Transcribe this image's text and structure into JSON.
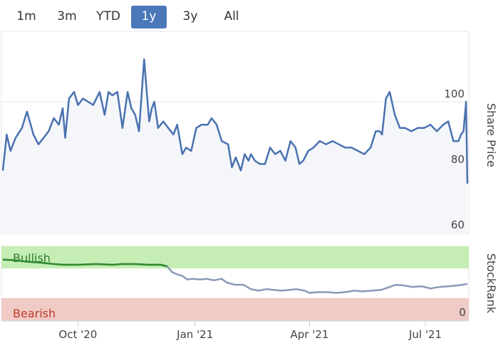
{
  "range_selector": {
    "buttons": [
      "1m",
      "3m",
      "YTD",
      "1y",
      "3y",
      "All"
    ],
    "selected": "1y"
  },
  "colors": {
    "price_line": "#4a72b0",
    "price_fill": "#f4f6fa",
    "bullish_band": "#c6eeb4",
    "bearish_band": "#f0cbc6",
    "bullish_line": "#2e8b2e",
    "stockrank_line": "#8a9ab5",
    "active_button": "#4a78b8"
  },
  "chart_data": [
    {
      "type": "line",
      "ylabel": "Share Price",
      "ylim": [
        57,
        115
      ],
      "y_ticks": [
        60,
        80,
        100
      ],
      "grid": true,
      "x_ticks": [
        {
          "label": "Oct '20",
          "date": "2020-10-01"
        },
        {
          "label": "Jan '21",
          "date": "2021-01-01"
        },
        {
          "label": "Apr '21",
          "date": "2021-04-01"
        },
        {
          "label": "Jul '21",
          "date": "2021-07-01"
        }
      ],
      "series": [
        {
          "x": [
            "2020-08-03",
            "2020-08-06",
            "2020-08-09",
            "2020-08-13",
            "2020-08-18",
            "2020-08-22",
            "2020-08-27",
            "2020-08-31",
            "2020-09-04",
            "2020-09-08",
            "2020-09-12",
            "2020-09-16",
            "2020-09-19",
            "2020-09-21",
            "2020-09-24",
            "2020-09-28",
            "2020-10-01",
            "2020-10-05",
            "2020-10-09",
            "2020-10-13",
            "2020-10-18",
            "2020-10-22",
            "2020-10-25",
            "2020-10-28",
            "2020-11-01",
            "2020-11-05",
            "2020-11-09",
            "2020-11-12",
            "2020-11-15",
            "2020-11-18",
            "2020-11-22",
            "2020-11-26",
            "2020-11-28",
            "2020-11-30",
            "2020-12-03",
            "2020-12-07",
            "2020-12-11",
            "2020-12-15",
            "2020-12-18",
            "2020-12-22",
            "2020-12-25",
            "2020-12-29",
            "2021-01-02",
            "2021-01-06",
            "2021-01-11",
            "2021-01-14",
            "2021-01-18",
            "2021-01-22",
            "2021-01-27",
            "2021-01-30",
            "2021-02-02",
            "2021-02-06",
            "2021-02-09",
            "2021-02-12",
            "2021-02-14",
            "2021-02-17",
            "2021-02-21",
            "2021-02-25",
            "2021-03-01",
            "2021-03-05",
            "2021-03-09",
            "2021-03-13",
            "2021-03-17",
            "2021-03-21",
            "2021-03-24",
            "2021-03-27",
            "2021-03-31",
            "2021-04-04",
            "2021-04-09",
            "2021-04-14",
            "2021-04-19",
            "2021-04-24",
            "2021-04-29",
            "2021-05-04",
            "2021-05-09",
            "2021-05-14",
            "2021-05-19",
            "2021-05-23",
            "2021-05-26",
            "2021-05-28",
            "2021-05-31",
            "2021-06-03",
            "2021-06-07",
            "2021-06-11",
            "2021-06-15",
            "2021-06-20",
            "2021-06-25",
            "2021-06-30",
            "2021-07-05",
            "2021-07-10",
            "2021-07-15",
            "2021-07-19",
            "2021-07-23",
            "2021-07-27",
            "2021-07-29",
            "2021-07-31",
            "2021-08-02",
            "2021-08-03"
          ],
          "y": [
            79,
            90,
            85,
            89,
            92,
            97,
            90,
            87,
            89,
            91,
            95,
            93,
            98,
            89,
            101,
            103,
            99,
            101,
            100,
            99,
            103,
            96,
            103,
            102,
            103,
            92,
            103,
            98,
            96,
            91,
            113,
            94,
            98,
            100,
            92,
            94,
            92,
            90,
            93,
            84,
            86,
            85,
            92,
            93,
            93,
            95,
            93,
            88,
            87,
            80,
            83,
            79,
            84,
            82,
            84,
            82,
            81,
            81,
            86,
            84,
            85,
            82,
            88,
            86,
            81,
            82,
            85,
            86,
            88,
            87,
            88,
            87,
            86,
            86,
            85,
            84,
            86,
            91,
            91,
            90,
            101,
            103,
            96,
            92,
            92,
            91,
            92,
            92,
            93,
            91,
            93,
            94,
            88,
            88,
            90,
            91,
            100,
            75
          ]
        }
      ]
    },
    {
      "type": "line",
      "ylabel": "StockRank",
      "y_ticks": [
        0
      ],
      "ylim": [
        0,
        100
      ],
      "bands": [
        {
          "label": "Bullish",
          "from": 70,
          "to": 100
        },
        {
          "label": "Bearish",
          "from": 0,
          "to": 30
        }
      ],
      "series": [
        {
          "x": [
            "2020-08-03",
            "2020-08-13",
            "2020-08-22",
            "2020-09-01",
            "2020-09-12",
            "2020-09-20",
            "2020-10-01",
            "2020-10-15",
            "2020-10-28",
            "2020-11-05",
            "2020-11-15",
            "2020-11-25",
            "2020-12-05",
            "2020-12-10",
            "2020-12-14",
            "2020-12-18",
            "2020-12-22",
            "2020-12-26",
            "2020-12-30",
            "2021-01-05",
            "2021-01-10",
            "2021-01-16",
            "2021-01-22",
            "2021-01-26",
            "2021-02-01",
            "2021-02-08",
            "2021-02-14",
            "2021-02-20",
            "2021-02-26",
            "2021-03-04",
            "2021-03-10",
            "2021-03-16",
            "2021-03-22",
            "2021-03-28",
            "2021-04-01",
            "2021-04-08",
            "2021-04-15",
            "2021-04-22",
            "2021-04-29",
            "2021-05-06",
            "2021-05-13",
            "2021-05-20",
            "2021-05-27",
            "2021-06-03",
            "2021-06-08",
            "2021-06-14",
            "2021-06-21",
            "2021-06-28",
            "2021-07-05",
            "2021-07-12",
            "2021-07-19",
            "2021-07-26",
            "2021-08-03"
          ],
          "y": [
            82,
            81,
            79,
            78,
            76,
            75,
            75,
            76,
            75,
            76,
            76,
            75,
            75,
            73,
            65,
            62,
            60,
            55,
            56,
            55,
            56,
            54,
            56,
            51,
            48,
            48,
            42,
            40,
            42,
            41,
            40,
            41,
            42,
            40,
            37,
            38,
            38,
            37,
            38,
            40,
            39,
            40,
            41,
            45,
            48,
            47,
            45,
            46,
            43,
            45,
            46,
            47,
            49
          ]
        }
      ]
    }
  ]
}
